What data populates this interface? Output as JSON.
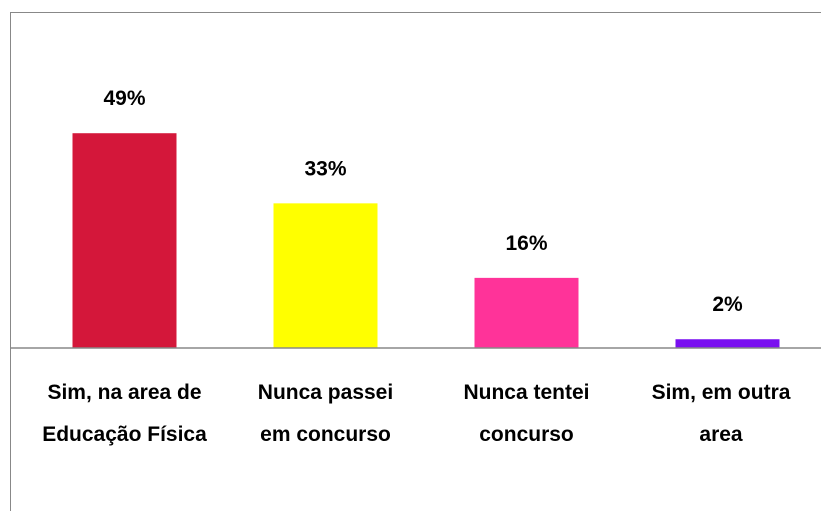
{
  "chart_data": {
    "type": "bar",
    "categories": [
      "Sim, na area de\nEducação Física",
      "Nunca passei\nem concurso",
      "Nunca tentei\nconcurso",
      "Sim, em outra\narea"
    ],
    "values": [
      49,
      33,
      16,
      2
    ],
    "value_labels": [
      "49%",
      "33%",
      "16%",
      "2%"
    ],
    "colors": [
      "#d4173a",
      "#ffff00",
      "#ff3399",
      "#7a10f0"
    ],
    "ylim": [
      0,
      60
    ]
  }
}
